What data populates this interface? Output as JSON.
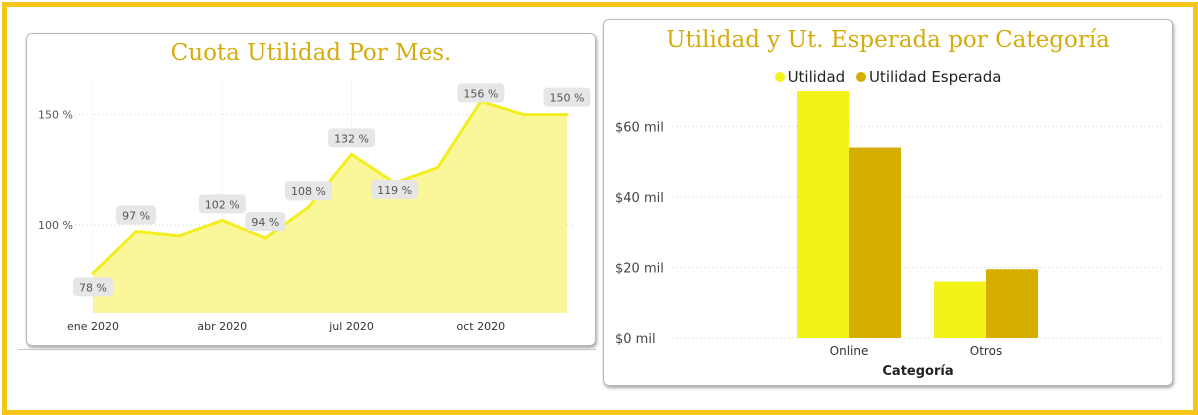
{
  "colors": {
    "frame": "#F5C518",
    "title": "#D4AC0D",
    "line": "#F2EE1F",
    "area": "#F9F79A",
    "utilidad": "#F3F31A",
    "esperada": "#D6AE00",
    "label_bg": "#E6E6E6"
  },
  "chart_data": [
    {
      "type": "area",
      "title": "Cuota Utilidad Por Mes.",
      "xlabel": "",
      "ylabel": "",
      "x_tick_labels": [
        "ene 2020",
        "abr 2020",
        "jul 2020",
        "oct 2020"
      ],
      "x_tick_positions": [
        0,
        3,
        6,
        9
      ],
      "y_ticks": [
        100,
        150
      ],
      "y_tick_labels": [
        "100 %",
        "150 %"
      ],
      "ylim": [
        60,
        163
      ],
      "grid": true,
      "x": [
        "ene 2020",
        "feb 2020",
        "mar 2020",
        "abr 2020",
        "may 2020",
        "jun 2020",
        "jul 2020",
        "ago 2020",
        "sep 2020",
        "oct 2020",
        "nov 2020",
        "dic 2020"
      ],
      "values": [
        78,
        97,
        95,
        102,
        94,
        108,
        132,
        119,
        126,
        156,
        150,
        150
      ],
      "data_labels": [
        {
          "index": 0,
          "text": "78 %"
        },
        {
          "index": 1,
          "text": "97 %"
        },
        {
          "index": 3,
          "text": "102 %"
        },
        {
          "index": 4,
          "text": "94 %"
        },
        {
          "index": 5,
          "text": "108 %"
        },
        {
          "index": 6,
          "text": "132 %"
        },
        {
          "index": 7,
          "text": "119 %"
        },
        {
          "index": 9,
          "text": "156 %"
        },
        {
          "index": 11,
          "text": "150 %"
        }
      ]
    },
    {
      "type": "bar",
      "title": "Utilidad y Ut. Esperada por Categoría",
      "xlabel": "Categoría",
      "ylabel": "",
      "categories": [
        "Online",
        "Otros"
      ],
      "series": [
        {
          "name": "Utilidad",
          "values": [
            70,
            16
          ]
        },
        {
          "name": "Utilidad Esperada",
          "values": [
            54,
            19.5
          ]
        }
      ],
      "y_ticks": [
        0,
        20,
        40,
        60
      ],
      "y_tick_labels": [
        "$0 mil",
        "$20 mil",
        "$40 mil",
        "$60 mil"
      ],
      "ylim": [
        0,
        72
      ],
      "grid": true,
      "legend": "top-center"
    }
  ]
}
